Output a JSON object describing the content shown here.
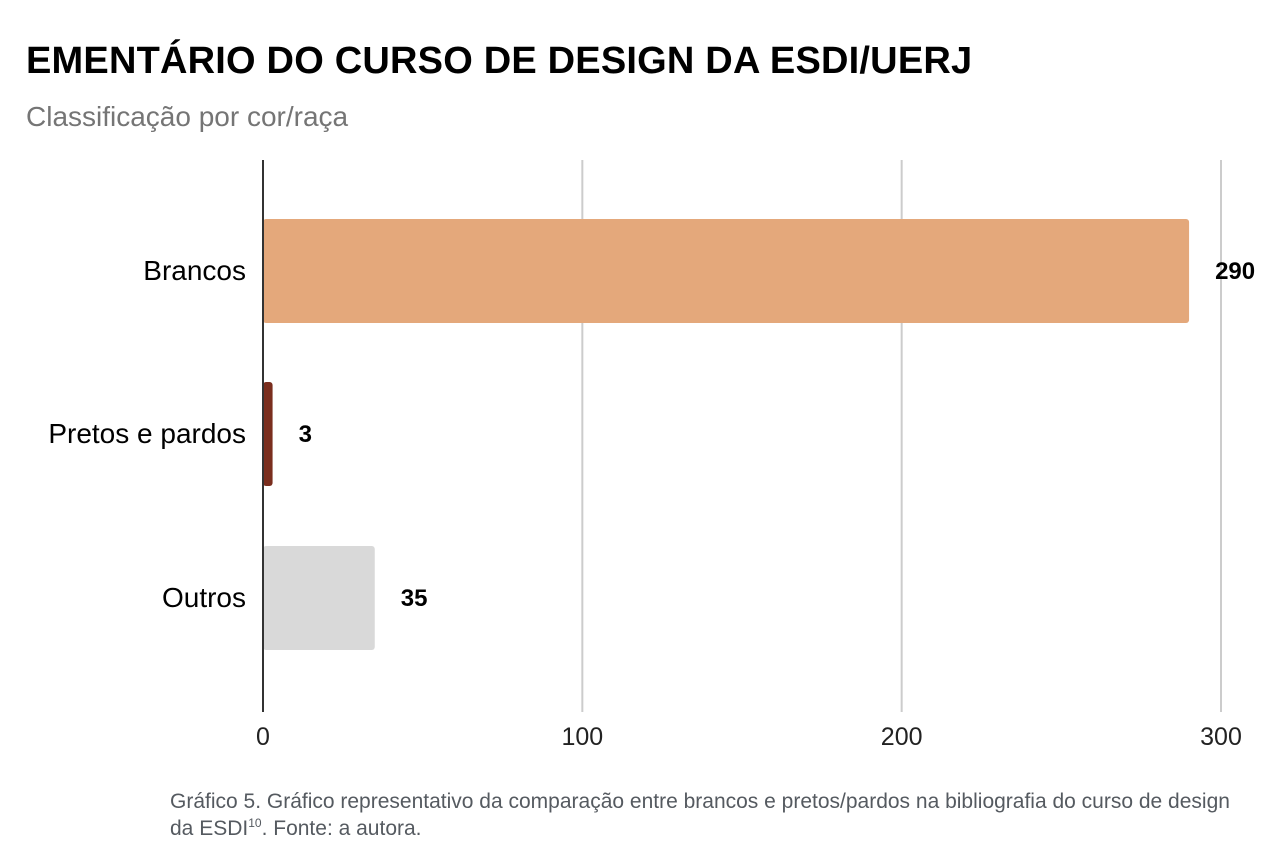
{
  "chart_data": {
    "type": "bar",
    "orientation": "horizontal",
    "title": "EMENTÁRIO DO CURSO DE DESIGN DA ESDI/UERJ",
    "subtitle": "Classificação por cor/raça",
    "categories": [
      "Brancos",
      "Pretos e pardos",
      "Outros"
    ],
    "values": [
      290,
      3,
      35
    ],
    "data_labels": [
      "290",
      "3",
      "35"
    ],
    "colors": [
      "#e4a87b",
      "#7a2e1e",
      "#d9d9d9"
    ],
    "xlim": [
      0,
      300
    ],
    "x_ticks": [
      0,
      100,
      200,
      300
    ],
    "x_tick_labels": [
      "0",
      "100",
      "200",
      "300"
    ],
    "gridlines": true,
    "gridline_color": "#cccccc",
    "axis_line_color": "#333333"
  },
  "caption": {
    "text": "Gráfico 5. Gráfico representativo da comparação entre brancos e pretos/pardos na bibliografia do curso de design da ESDI",
    "footnote_ref": "10",
    "suffix": ". Fonte: a autora."
  }
}
